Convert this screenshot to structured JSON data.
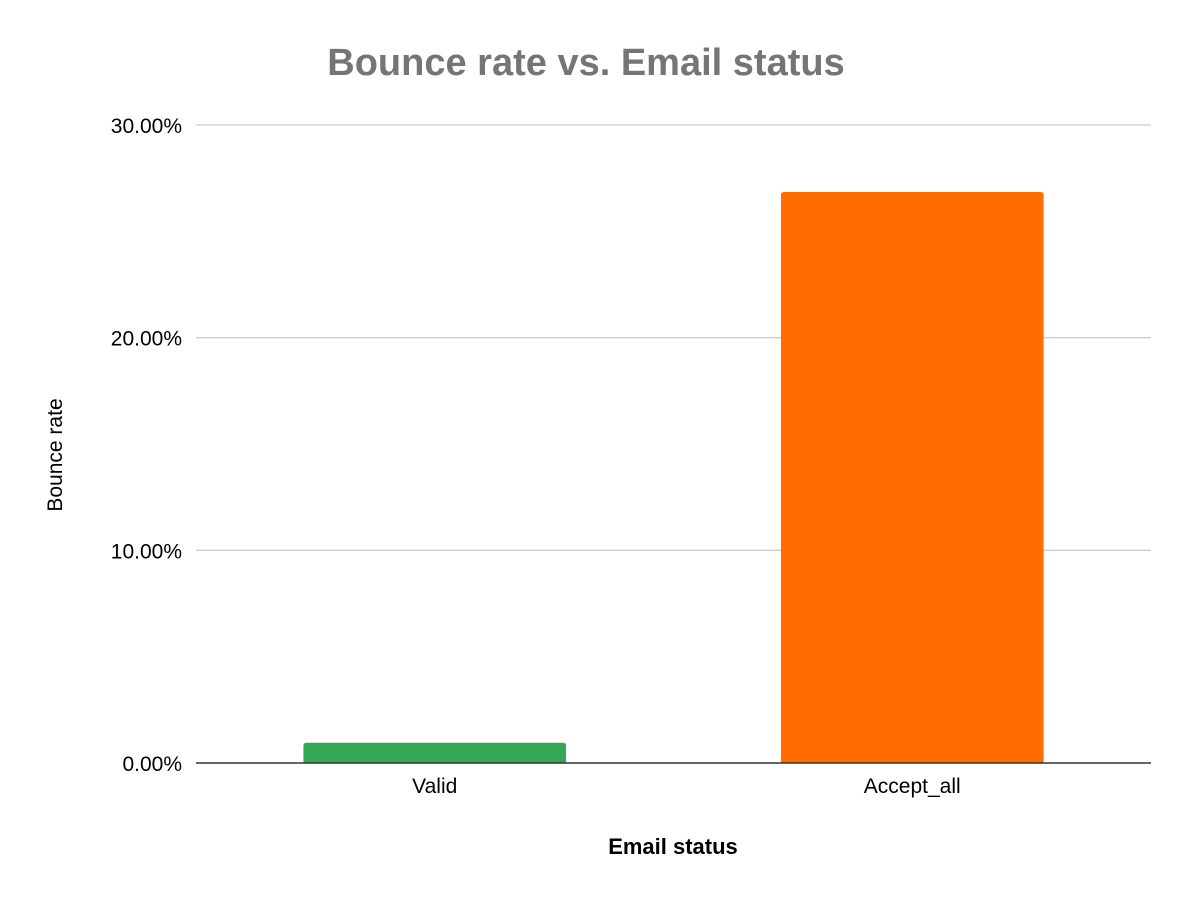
{
  "chart_data": {
    "type": "bar",
    "title": "Bounce rate vs. Email status",
    "xlabel": "Email status",
    "ylabel": "Bounce rate",
    "categories": [
      "Valid",
      "Accept_all"
    ],
    "values": [
      0.0095,
      0.2685
    ],
    "bar_colors": [
      "#34a853",
      "#ff6d01"
    ],
    "ylim": [
      0,
      0.3
    ],
    "yticks": [
      0,
      0.1,
      0.2,
      0.3
    ],
    "ytick_labels": [
      "0.00%",
      "10.00%",
      "20.00%",
      "30.00%"
    ],
    "grid": true,
    "legend": "none",
    "colors": {
      "title": "#757575",
      "grid": "#cccccc",
      "baseline": "#333333"
    }
  }
}
